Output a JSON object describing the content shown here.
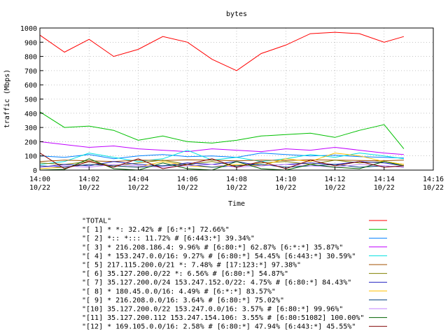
{
  "chart_data": {
    "type": "line",
    "title": "bytes",
    "xlabel": "Time",
    "ylabel": "traffic (Mbps)",
    "ylim": [
      0,
      1000
    ],
    "xlim": [
      "14:00 10/22",
      "14:16 10/22"
    ],
    "grid": true,
    "legend_position": "bottom",
    "x_ticks": [
      {
        "time": "14:00",
        "date": "10/22",
        "minute": 0
      },
      {
        "time": "14:02",
        "date": "10/22",
        "minute": 2
      },
      {
        "time": "14:04",
        "date": "10/22",
        "minute": 4
      },
      {
        "time": "14:06",
        "date": "10/22",
        "minute": 6
      },
      {
        "time": "14:08",
        "date": "10/22",
        "minute": 8
      },
      {
        "time": "14:10",
        "date": "10/22",
        "minute": 10
      },
      {
        "time": "14:12",
        "date": "10/22",
        "minute": 12
      },
      {
        "time": "14:14",
        "date": "10/22",
        "minute": 14
      },
      {
        "time": "14:16",
        "date": "10/22",
        "minute": 16
      }
    ],
    "y_ticks": [
      0,
      100,
      200,
      300,
      400,
      500,
      600,
      700,
      800,
      900,
      1000
    ],
    "x_minutes": [
      0.0,
      1.0,
      2.0,
      3.0,
      4.0,
      5.0,
      6.0,
      7.0,
      8.0,
      9.0,
      10.0,
      11.0,
      12.0,
      13.0,
      14.0,
      14.8
    ],
    "series": [
      {
        "name": "\"TOTAL\"",
        "color": "#ff0000",
        "values": [
          950,
          830,
          920,
          800,
          850,
          940,
          900,
          780,
          700,
          820,
          880,
          960,
          970,
          960,
          900,
          940
        ]
      },
      {
        "name": "\"[ 1] * *: 32.42% # [6:*:*] 72.66%\"",
        "color": "#00c000",
        "values": [
          410,
          300,
          310,
          280,
          210,
          240,
          200,
          190,
          210,
          240,
          250,
          260,
          230,
          280,
          320,
          150
        ]
      },
      {
        "name": "\"[ 2] *:: *::: 11.72% # [6:443:*] 39.34%\"",
        "color": "#0080ff",
        "values": [
          100,
          90,
          110,
          80,
          100,
          110,
          95,
          100,
          90,
          120,
          110,
          100,
          105,
          95,
          90,
          85
        ]
      },
      {
        "name": "\"[ 3] * 216.208.186.4: 9.96% # [6:80:*] 62.87% [6:*:*] 35.87%\"",
        "color": "#c000ff",
        "values": [
          200,
          180,
          160,
          170,
          150,
          140,
          130,
          150,
          140,
          130,
          150,
          140,
          160,
          140,
          120,
          110
        ]
      },
      {
        "name": "\"[ 4] * 153.247.0.0/16: 9.27% # [6:80:*] 54.45% [6:443:*] 30.59%\"",
        "color": "#00e0e0",
        "values": [
          40,
          60,
          120,
          90,
          60,
          80,
          140,
          70,
          90,
          60,
          80,
          110,
          90,
          120,
          100,
          80
        ]
      },
      {
        "name": "\"[ 5] 217.115.200.0/21 *: 7.48% # [17:123:*] 97.38%\"",
        "color": "#a05000",
        "values": [
          60,
          70,
          65,
          60,
          70,
          68,
          72,
          70,
          65,
          70,
          68,
          72,
          70,
          68,
          66,
          70
        ]
      },
      {
        "name": "\"[ 6] 35.127.200.0/22 *: 6.56% # [6:80:*] 54.87%\"",
        "color": "#808000",
        "values": [
          50,
          40,
          60,
          30,
          50,
          70,
          40,
          60,
          30,
          50,
          60,
          40,
          70,
          50,
          60,
          40
        ]
      },
      {
        "name": "\"[ 7] 35.127.200.0/24 153.247.152.0/22: 4.75% # [6:80:*] 84.43%\"",
        "color": "#2020c0",
        "values": [
          20,
          40,
          30,
          60,
          40,
          30,
          50,
          40,
          60,
          30,
          40,
          50,
          40,
          60,
          50,
          30
        ]
      },
      {
        "name": "\"[ 8] * 180.45.0.0/16: 4.49% # [6:*:*] 83.57%\"",
        "color": "#ffc000",
        "values": [
          10,
          20,
          40,
          30,
          20,
          60,
          30,
          20,
          40,
          30,
          80,
          60,
          120,
          100,
          60,
          40
        ]
      },
      {
        "name": "\"[ 9] * 216.208.0.0/16: 3.64% # [6:80:*] 75.02%\"",
        "color": "#004080",
        "values": [
          30,
          20,
          40,
          30,
          20,
          30,
          40,
          20,
          30,
          40,
          20,
          30,
          40,
          20,
          30,
          20
        ]
      },
      {
        "name": "\"[10] 35.127.200.0/22 153.247.0.0/16: 3.57% # [6:80:*] 99.96%\"",
        "color": "#c080ff",
        "values": [
          20,
          30,
          20,
          40,
          30,
          20,
          30,
          40,
          20,
          30,
          40,
          30,
          20,
          40,
          30,
          20
        ]
      },
      {
        "name": "\"[11] 35.127.200.112 153.247.154.106: 3.55% # [6:80:51082] 100.00%\"",
        "color": "#006000",
        "values": [
          0,
          5,
          80,
          10,
          0,
          50,
          10,
          0,
          60,
          10,
          0,
          40,
          20,
          10,
          60,
          30
        ]
      },
      {
        "name": "\"[12] * 169.105.0.0/16: 2.58% # [6:80:*] 47.94% [6:443:*] 45.55%\"",
        "color": "#800000",
        "values": [
          120,
          10,
          60,
          20,
          80,
          10,
          40,
          80,
          20,
          60,
          10,
          70,
          30,
          60,
          20,
          30
        ]
      }
    ]
  }
}
